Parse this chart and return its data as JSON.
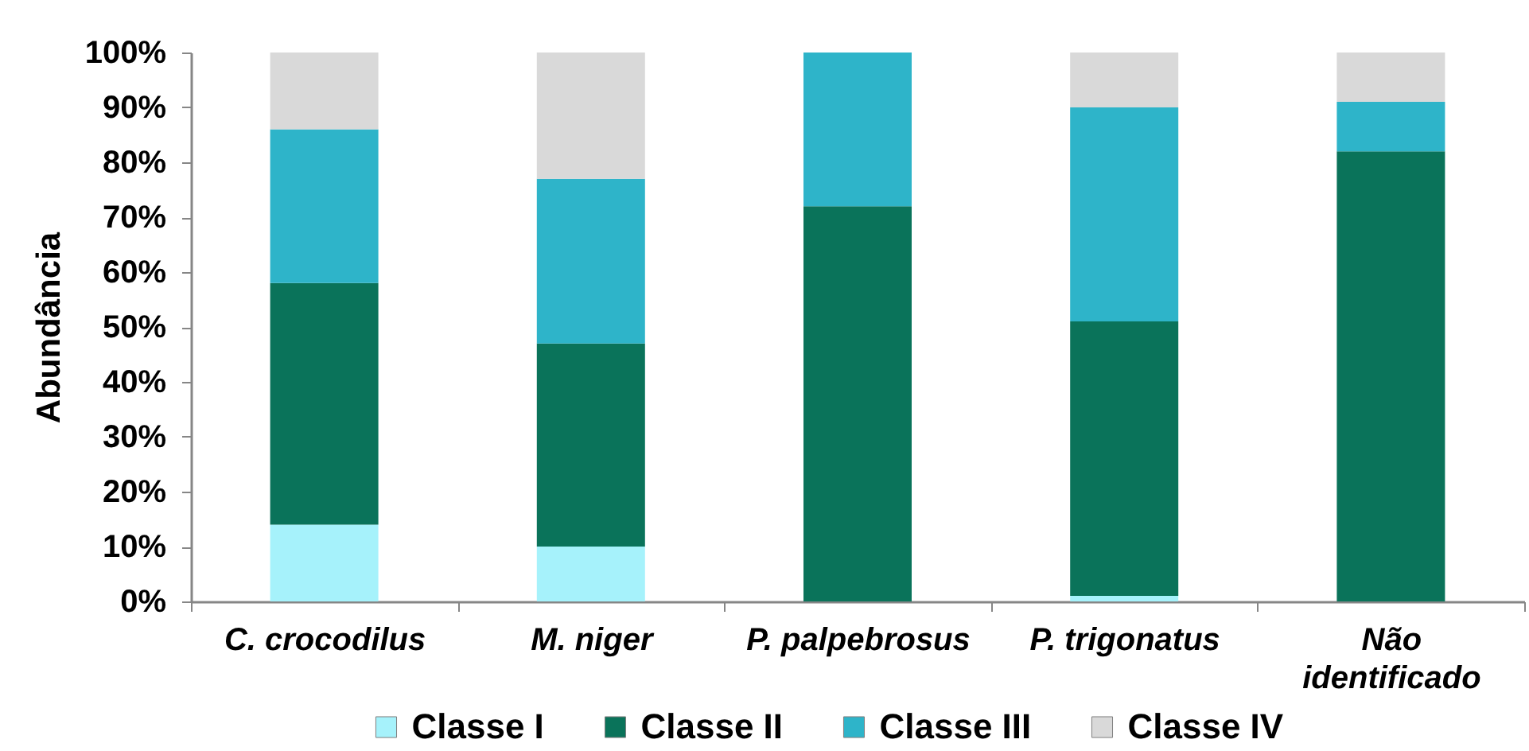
{
  "chart_data": {
    "type": "bar",
    "stacked": true,
    "categories": [
      "C. crocodilus",
      "M. niger",
      "P. palpebrosus",
      "P. trigonatus",
      "Não identificado"
    ],
    "series": [
      {
        "name": "Classe I",
        "color": "#a6f2fb",
        "values": [
          14,
          10,
          null,
          1,
          null
        ]
      },
      {
        "name": "Classe II",
        "color": "#0a735a",
        "values": [
          44,
          37,
          72,
          50,
          82
        ]
      },
      {
        "name": "Classe III",
        "color": "#2eb4c9",
        "values": [
          28,
          30,
          28,
          39,
          9
        ]
      },
      {
        "name": "Classe IV",
        "color": "#d9d9d9",
        "values": [
          14,
          23,
          null,
          10,
          9
        ]
      }
    ],
    "ylabel": "Abundância",
    "ylim": [
      0,
      100
    ],
    "yticks": [
      {
        "value": 0,
        "label": "0%"
      },
      {
        "value": 10,
        "label": "10%"
      },
      {
        "value": 20,
        "label": "20%"
      },
      {
        "value": 30,
        "label": "30%"
      },
      {
        "value": 40,
        "label": "40%"
      },
      {
        "value": 50,
        "label": "50%"
      },
      {
        "value": 60,
        "label": "60%"
      },
      {
        "value": 70,
        "label": "70%"
      },
      {
        "value": 80,
        "label": "80%"
      },
      {
        "value": 90,
        "label": "90%"
      },
      {
        "value": 100,
        "label": "100%"
      }
    ],
    "legend": "bottom"
  }
}
